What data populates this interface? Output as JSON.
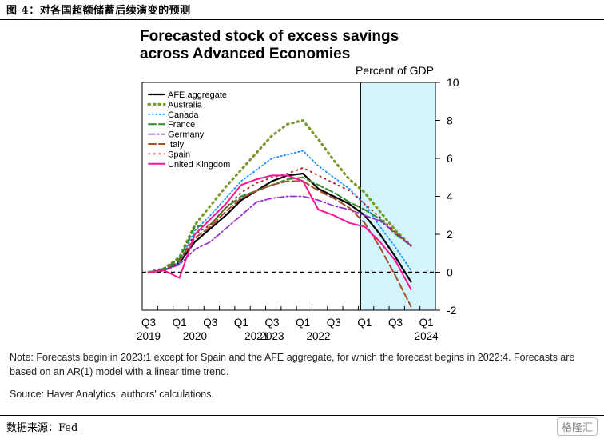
{
  "figure_title": "图 4：对各国超额储蓄后续演变的预测",
  "chart_data": {
    "type": "line",
    "title": "Forecasted stock of excess savings\nacross Advanced Economies",
    "ylabel": "Percent of GDP",
    "ylim": [
      -2,
      10
    ],
    "yticks": [
      -2,
      0,
      2,
      4,
      6,
      8,
      10
    ],
    "x_ticks": [
      "Q3",
      "Q1",
      "Q3",
      "Q1",
      "Q3",
      "Q1",
      "Q3",
      "Q1",
      "Q3",
      "Q1"
    ],
    "x_years": [
      "2019",
      "2020",
      "2021",
      "2022",
      "2023",
      "2024"
    ],
    "forecast_region": [
      "2023Q1",
      "2024Q1"
    ],
    "legend_position": "top-left",
    "x": [
      "2019Q3",
      "2019Q4",
      "2020Q1",
      "2020Q2",
      "2020Q3",
      "2020Q4",
      "2021Q1",
      "2021Q2",
      "2021Q3",
      "2021Q4",
      "2022Q1",
      "2022Q2",
      "2022Q3",
      "2022Q4",
      "2023Q1",
      "2023Q2",
      "2023Q3",
      "2023Q4"
    ],
    "series": [
      {
        "name": "AFE aggregate",
        "color": "#000000",
        "dash": "solid",
        "width": 2.2,
        "values": [
          0,
          0.1,
          0.5,
          1.6,
          2.3,
          3.0,
          3.8,
          4.3,
          4.8,
          5.1,
          5.2,
          4.4,
          4.0,
          3.6,
          3.0,
          2.0,
          0.8,
          -0.5
        ]
      },
      {
        "name": "Australia",
        "color": "#7a9a2a",
        "dash": "dots",
        "width": 3.2,
        "values": [
          0,
          0.2,
          0.8,
          2.5,
          3.5,
          4.5,
          5.4,
          6.3,
          7.2,
          7.8,
          8.0,
          7.0,
          5.9,
          4.9,
          4.2,
          3.2,
          2.2,
          1.4
        ]
      },
      {
        "name": "Canada",
        "color": "#1e90ff",
        "dash": "dots-fine",
        "width": 1.8,
        "values": [
          0,
          0.1,
          0.5,
          2.2,
          3.0,
          3.9,
          4.8,
          5.4,
          6.0,
          6.2,
          6.4,
          5.6,
          5.0,
          4.4,
          3.6,
          2.4,
          1.3,
          0.1
        ]
      },
      {
        "name": "France",
        "color": "#2e8b2e",
        "dash": "dash-long",
        "width": 2,
        "values": [
          0,
          0.2,
          0.7,
          2.4,
          2.5,
          3.4,
          4.0,
          4.3,
          4.6,
          4.9,
          5.0,
          4.6,
          4.2,
          3.7,
          3.3,
          2.8,
          2.0,
          1.4
        ]
      },
      {
        "name": "Germany",
        "color": "#9932cc",
        "dash": "dash-dot",
        "width": 1.8,
        "values": [
          0,
          0.1,
          0.4,
          1.2,
          1.6,
          2.3,
          3.0,
          3.7,
          3.9,
          4.0,
          4.0,
          3.8,
          3.5,
          3.3,
          3.0,
          2.7,
          2.1,
          1.4
        ]
      },
      {
        "name": "Italy",
        "color": "#a0522d",
        "dash": "dash-long",
        "width": 2,
        "values": [
          0,
          0.1,
          0.6,
          1.8,
          2.4,
          3.2,
          3.9,
          4.3,
          4.6,
          4.8,
          4.8,
          4.3,
          3.9,
          3.4,
          2.6,
          1.3,
          -0.2,
          -1.8
        ]
      },
      {
        "name": "Spain",
        "color": "#b22222",
        "dash": "dots",
        "width": 1.8,
        "values": [
          0,
          0.1,
          0.6,
          2.0,
          2.5,
          3.4,
          4.2,
          4.7,
          5.0,
          5.2,
          5.5,
          5.1,
          4.7,
          4.3,
          3.6,
          2.9,
          2.1,
          1.4
        ]
      },
      {
        "name": "United Kingdom",
        "color": "#ff1493",
        "dash": "solid",
        "width": 2,
        "values": [
          0,
          0.1,
          -0.3,
          2.0,
          2.8,
          3.6,
          4.6,
          4.9,
          5.1,
          5.1,
          4.8,
          3.3,
          3.0,
          2.6,
          2.4,
          1.6,
          0.6,
          -0.9
        ]
      }
    ]
  },
  "note": "Note: Forecasts begin in 2023:1 except for Spain and the AFE aggregate, for which the forecast begins in 2022:4. Forecasts are based on an AR(1) model with a linear time trend.",
  "source": "Source: Haver Analytics; authors' calculations.",
  "footer_source": "数据来源：Fed",
  "watermark": "格隆汇"
}
